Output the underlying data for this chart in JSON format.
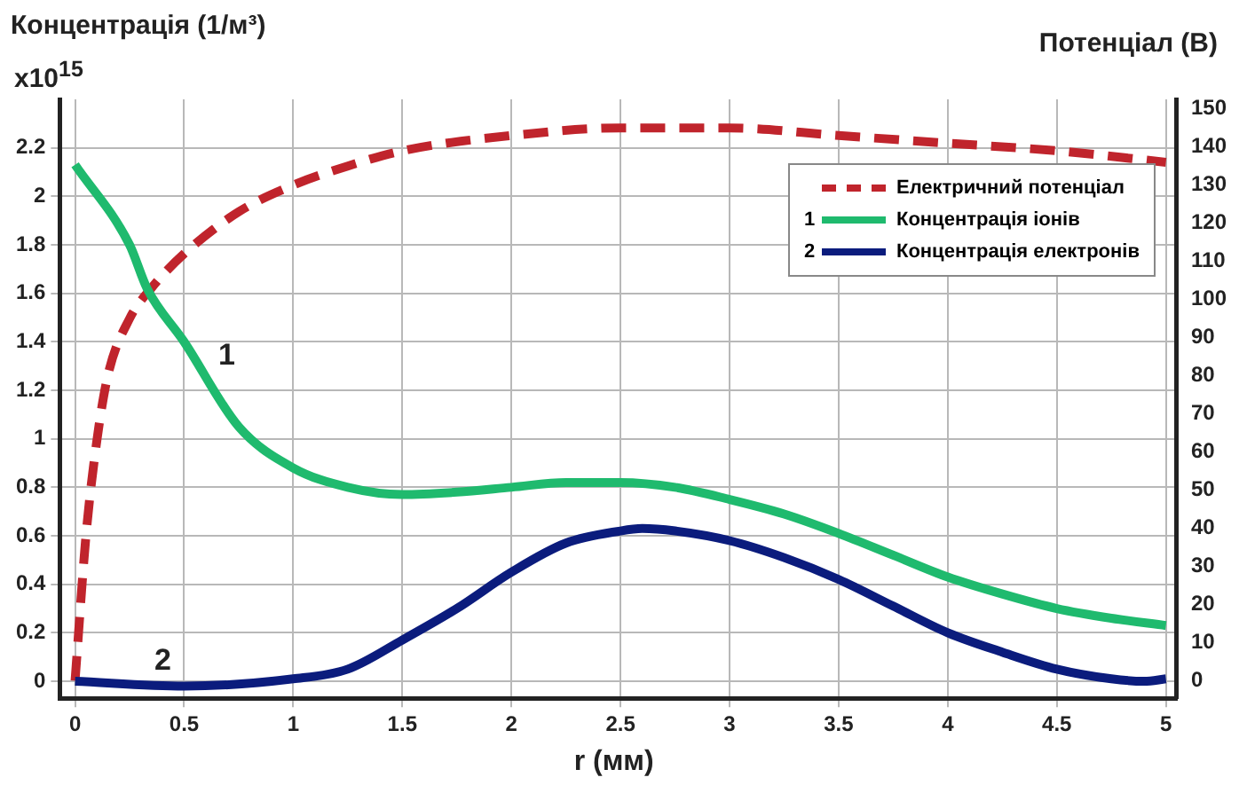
{
  "chart_data": {
    "type": "line",
    "ylabel": "Концентрація (1/м³)",
    "y2label": "Потенціал (В)",
    "xlabel": "r (мм)",
    "annotations": [
      "x10$^{15}$",
      "1",
      "2"
    ],
    "xlim": [
      -0.07,
      5.05
    ],
    "xticks": [
      0,
      0.5,
      1,
      1.5,
      2,
      2.5,
      3,
      3.5,
      4,
      4.5,
      5
    ],
    "ylim": [
      -0.07,
      2.4
    ],
    "yticks": [
      0,
      0.2,
      0.4,
      0.6,
      0.8,
      1,
      1.2,
      1.4,
      1.6,
      1.8,
      2,
      2.2
    ],
    "y2lim": [
      -4.6,
      152.5
    ],
    "y2ticks": [
      0,
      10,
      20,
      30,
      40,
      50,
      60,
      70,
      80,
      90,
      100,
      110,
      120,
      130,
      140,
      150
    ],
    "grid": true,
    "legend": "top right",
    "marker": "none",
    "series": [
      {
        "name": "Електричний потенціал",
        "color": "#c0242c",
        "axis": "y2",
        "line_style": "dashed",
        "x": [
          0,
          0.05,
          0.1,
          0.15,
          0.25,
          0.35,
          0.5,
          0.75,
          1,
          1.25,
          1.5,
          2,
          2.5,
          3,
          3.5,
          4,
          4.5,
          5
        ],
        "values": [
          0,
          38,
          63,
          80,
          95,
          103,
          112,
          123,
          130,
          135,
          139,
          143,
          145,
          145,
          143,
          141,
          139,
          136
        ]
      },
      {
        "name": "Концентрація іонів",
        "color": "#1fba6e",
        "x": [
          0,
          0.25,
          0.33,
          0.5,
          0.75,
          1,
          1.25,
          1.5,
          1.75,
          2,
          2.25,
          2.5,
          2.75,
          3,
          3.25,
          3.5,
          3.75,
          4,
          4.25,
          4.5,
          4.75,
          5
        ],
        "values": [
          2.13,
          1.8,
          1.62,
          1.4,
          1.05,
          0.88,
          0.8,
          0.77,
          0.78,
          0.8,
          0.82,
          0.82,
          0.8,
          0.75,
          0.69,
          0.61,
          0.52,
          0.43,
          0.36,
          0.3,
          0.26,
          0.23
        ]
      },
      {
        "name": "Концентрація електронів",
        "color": "#0b1c7d",
        "x": [
          0,
          0.5,
          1,
          1.25,
          1.5,
          1.75,
          2,
          2.25,
          2.5,
          2.6,
          2.75,
          3,
          3.25,
          3.5,
          3.75,
          4,
          4.25,
          4.5,
          4.75,
          4.9,
          5
        ],
        "values": [
          0,
          -0.02,
          0.01,
          0.05,
          0.17,
          0.3,
          0.45,
          0.57,
          0.62,
          0.63,
          0.62,
          0.58,
          0.51,
          0.42,
          0.31,
          0.2,
          0.12,
          0.05,
          0.01,
          0,
          0.01
        ]
      }
    ]
  }
}
